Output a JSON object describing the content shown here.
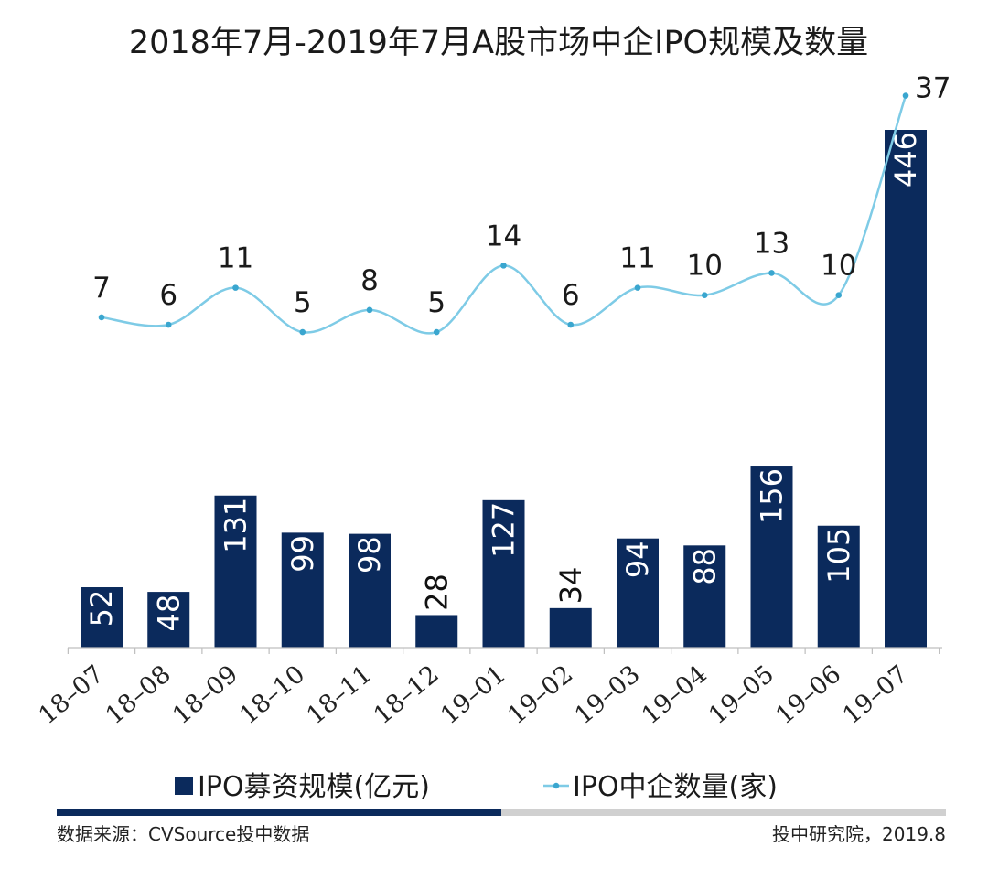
{
  "chart_data": {
    "type": "bar",
    "title": "2018年7月-2019年7月A股市场中企IPO规模及数量",
    "categories": [
      "18-07",
      "18-08",
      "18-09",
      "18-10",
      "18-11",
      "18-12",
      "19-01",
      "19-02",
      "19-03",
      "19-04",
      "19-05",
      "19-06",
      "19-07"
    ],
    "series": [
      {
        "name": "IPO募资规模(亿元)",
        "type": "bar",
        "values": [
          52,
          48,
          131,
          99,
          98,
          28,
          127,
          34,
          94,
          88,
          156,
          105,
          446
        ],
        "color": "#0b2a5c"
      },
      {
        "name": "IPO中企数量(家)",
        "type": "line",
        "values": [
          7,
          6,
          11,
          5,
          8,
          5,
          14,
          6,
          11,
          10,
          13,
          10,
          37
        ],
        "color": "#7ecbe6"
      }
    ],
    "xlabel": "",
    "ylabel": "",
    "grid": false,
    "legend": "bottom"
  },
  "footer": {
    "source": "数据来源：CVSource投中数据",
    "credit": "投中研究院，2019.8"
  },
  "colors": {
    "bar": "#0b2a5c",
    "line": "#7ecbe6",
    "footer_bar_dark": "#0b2a5c",
    "footer_bar_light": "#d0d0d0"
  }
}
